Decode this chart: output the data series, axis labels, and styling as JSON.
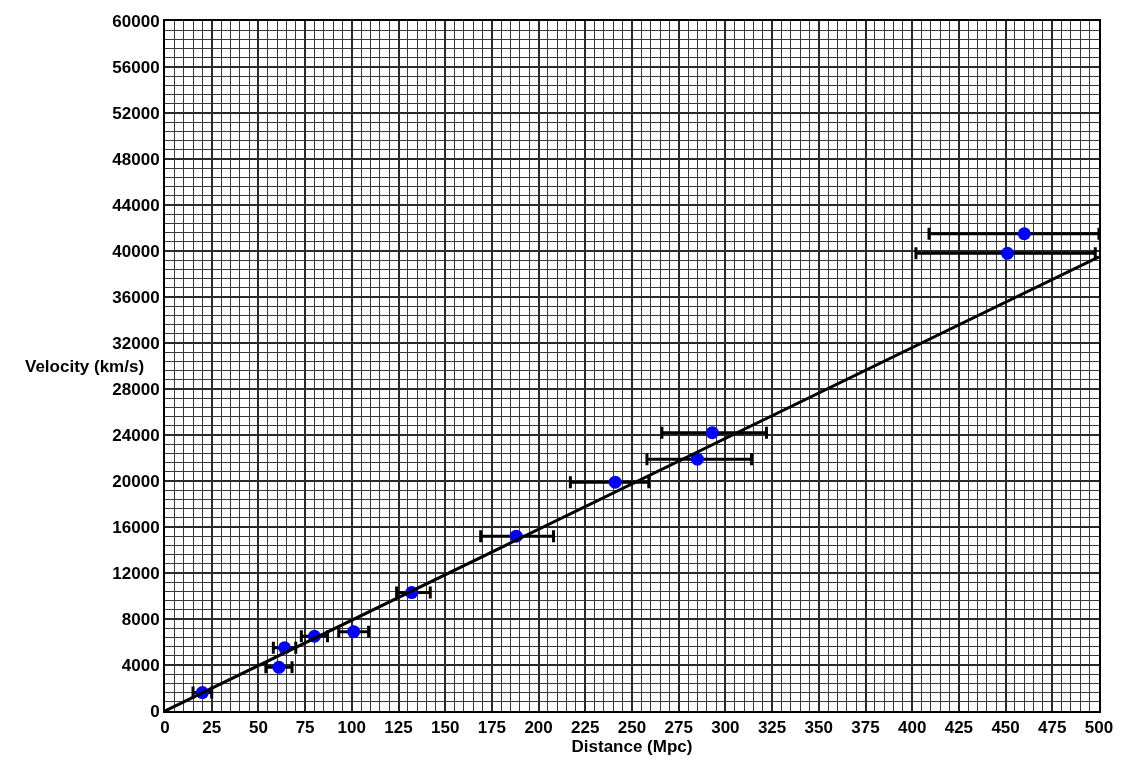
{
  "chart_data": {
    "type": "scatter",
    "xlabel": "Distance (Mpc)",
    "ylabel": "Velocity (km/s)",
    "xlim": [
      0,
      500
    ],
    "xticks": [
      0,
      25,
      50,
      75,
      100,
      125,
      150,
      175,
      200,
      225,
      250,
      275,
      300,
      325,
      350,
      375,
      400,
      425,
      450,
      475,
      500
    ],
    "ylim": [
      0,
      60000
    ],
    "yticks": [
      0,
      4000,
      8000,
      12000,
      16000,
      20000,
      24000,
      28000,
      32000,
      36000,
      40000,
      44000,
      48000,
      52000,
      56000,
      60000
    ],
    "grid": true,
    "marker": "circle",
    "series": [
      {
        "color": "#0000ff",
        "x": [
          20,
          61,
          64,
          80,
          101,
          132,
          188,
          241,
          285,
          293,
          451,
          460
        ],
        "values": [
          1600,
          3800,
          5500,
          6500,
          6900,
          10300,
          15200,
          19900,
          21900,
          24200,
          39800,
          41500
        ],
        "xerrors": [
          5,
          7,
          6,
          7,
          8,
          [
            124,
            142
          ],
          [
            169,
            208
          ],
          [
            217,
            259
          ],
          [
            258,
            314
          ],
          [
            266,
            322
          ],
          [
            402,
            498
          ],
          [
            409,
            500
          ]
        ]
      },
      {
        "type": "line",
        "color": "#000000",
        "marker": "none",
        "x": [
          0,
          500
        ],
        "values": [
          0,
          39500
        ]
      }
    ]
  }
}
